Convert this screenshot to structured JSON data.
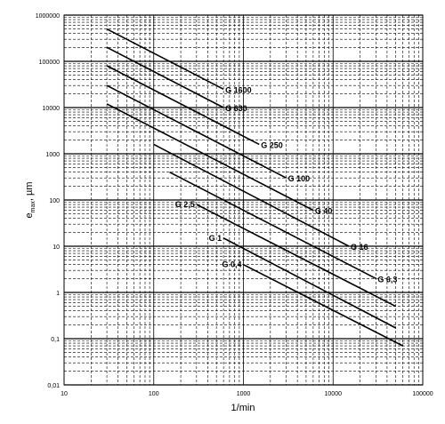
{
  "chart_data": {
    "type": "line",
    "xscale": "log",
    "yscale": "log",
    "xlim": [
      10,
      100000
    ],
    "ylim": [
      0.01,
      1000000
    ],
    "xlabel": "1/min",
    "ylabel_main": "e",
    "ylabel_sub": "max",
    "ylabel_unit": ", µm",
    "x_tick_labels": [
      "10",
      "100",
      "1000",
      "10000",
      "100000"
    ],
    "y_tick_labels": [
      "0,01",
      "0,1",
      "1",
      "10",
      "100",
      "1000",
      "10000",
      "100000",
      "1000000"
    ],
    "grid": true,
    "series": [
      {
        "name": "G 1600",
        "x": [
          30,
          600
        ],
        "y": [
          500000,
          25000
        ]
      },
      {
        "name": "G 630",
        "x": [
          30,
          600
        ],
        "y": [
          200000,
          10000
        ]
      },
      {
        "name": "G 250",
        "x": [
          30,
          1500
        ],
        "y": [
          80000,
          1600
        ]
      },
      {
        "name": "G 100",
        "x": [
          30,
          3000
        ],
        "y": [
          30000,
          300
        ]
      },
      {
        "name": "G 40",
        "x": [
          30,
          6000
        ],
        "y": [
          12000,
          60
        ]
      },
      {
        "name": "G 16",
        "x": [
          100,
          15000
        ],
        "y": [
          1600,
          10
        ]
      },
      {
        "name": "G 6.3",
        "x": [
          150,
          30000
        ],
        "y": [
          400,
          2
        ]
      },
      {
        "name": "G 2.5",
        "x": [
          300,
          50000
        ],
        "y": [
          80,
          0.5
        ]
      },
      {
        "name": "G 1",
        "x": [
          600,
          50000
        ],
        "y": [
          15,
          0.17
        ]
      },
      {
        "name": "G 0.4",
        "x": [
          1000,
          60000
        ],
        "y": [
          4,
          0.07
        ]
      }
    ],
    "series_labels": [
      "G 1600",
      "G 630",
      "G 250",
      "G 100",
      "G 40",
      "G 16",
      "G 6,3",
      "G 2,5",
      "G 1",
      "G 0,4"
    ]
  }
}
